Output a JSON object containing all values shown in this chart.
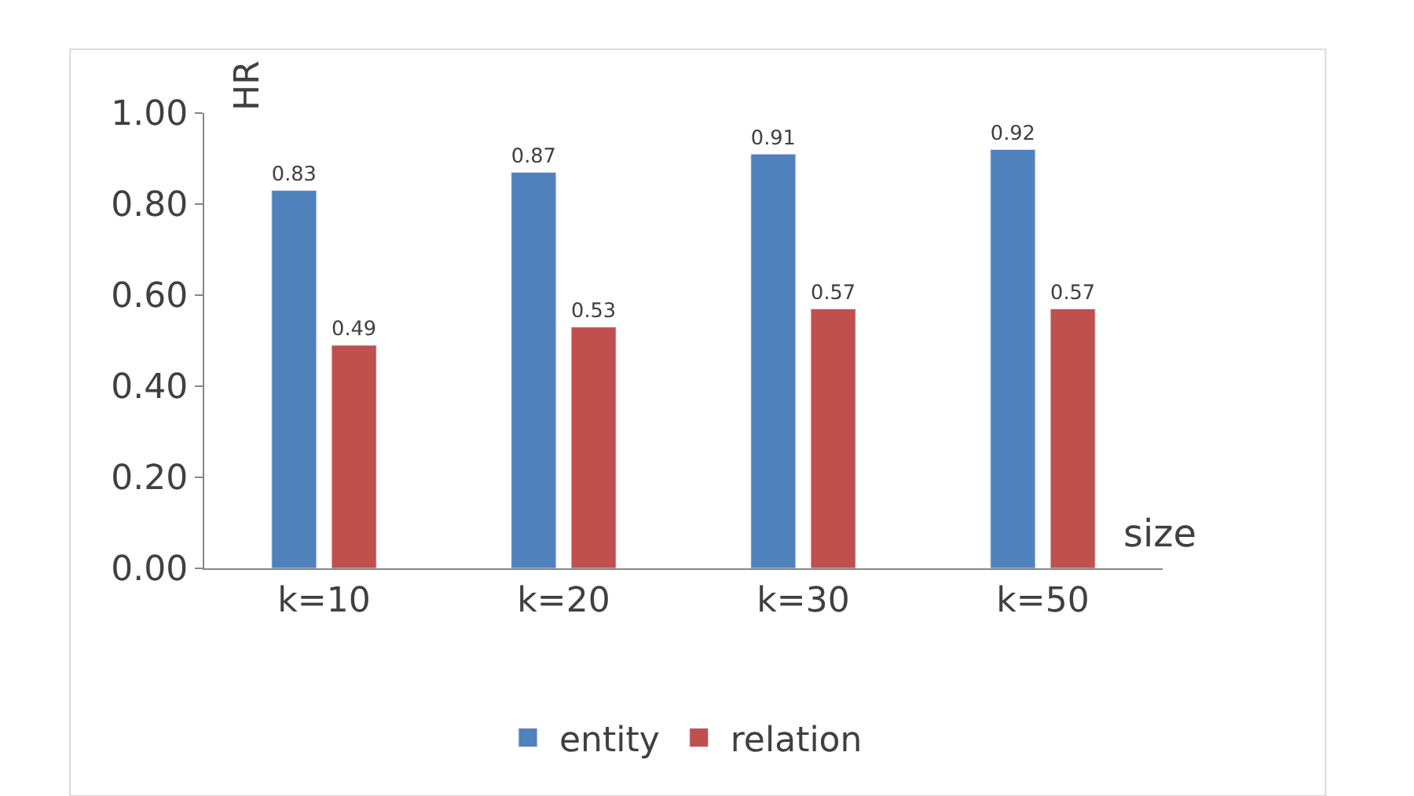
{
  "chart_data": {
    "type": "bar",
    "xlabel": "size",
    "ylabel": "HR",
    "categories": [
      "k=10",
      "k=20",
      "k=30",
      "k=50"
    ],
    "series": [
      {
        "name": "entity",
        "color": "#4f81bd",
        "values": [
          0.83,
          0.87,
          0.91,
          0.92
        ]
      },
      {
        "name": "relation",
        "color": "#c0504d",
        "values": [
          0.49,
          0.53,
          0.57,
          0.57
        ]
      }
    ],
    "ylim": [
      0,
      1.0
    ],
    "yticks": [
      {
        "value": 0,
        "label": "0.00"
      },
      {
        "value": 0.2,
        "label": "0.20"
      },
      {
        "value": 0.4,
        "label": "0.40"
      },
      {
        "value": 0.6,
        "label": "0.60"
      },
      {
        "value": 0.8,
        "label": "0.80"
      },
      {
        "value": 1.0,
        "label": "1.00"
      }
    ],
    "data_labels": true,
    "legend": "bottom"
  }
}
